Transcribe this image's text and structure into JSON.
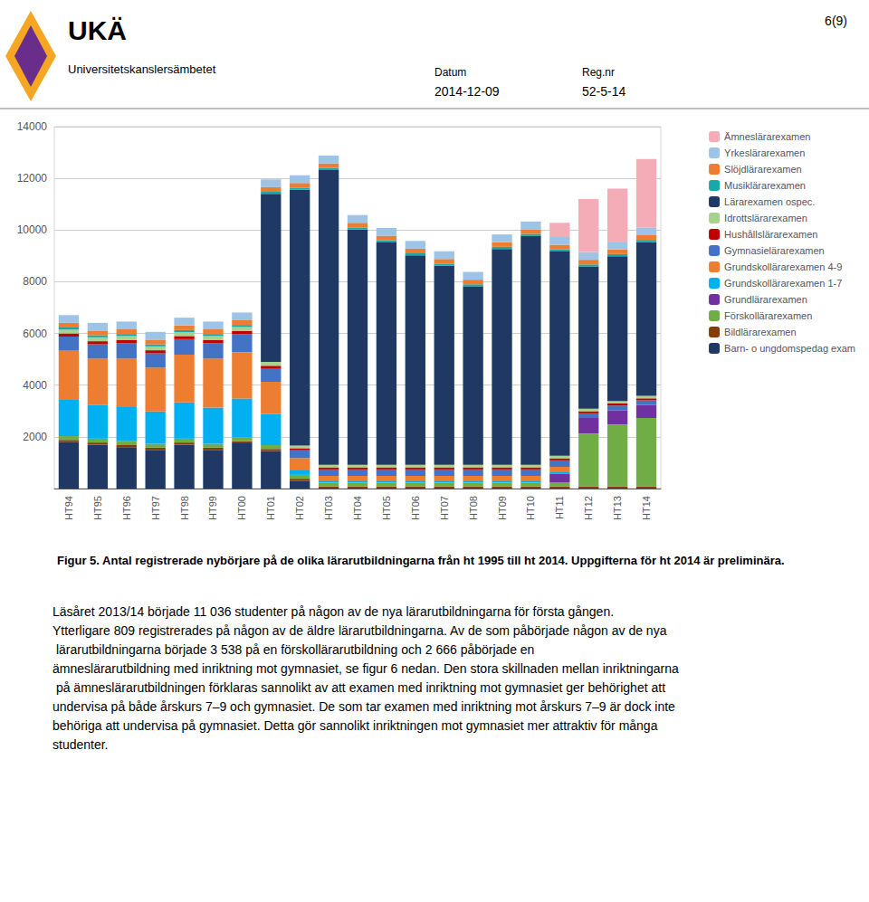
{
  "chart_data": {
    "type": "bar",
    "stacked": true,
    "title": "Figur 5. Antal registrerade nybörjare på de olika lärarutbildningarna från ht 1995 till ht 2014. Uppgifterna för ht 2014 är preliminära.",
    "annotations": [
      "UKÄ",
      "Universitetskanslersämbetet",
      "6(9)",
      "Datum",
      "2014-12-09",
      "Reg.nr",
      "52-5-14",
      "Läsåret 2013/14 började 11 036 studenter på någon av de nya lärarutbildningarna för första gången. Ytterligare 809 registrerades på någon av de äldre lärarutbildningarna. Av de som påbörjade någon av de nya lärarutbildningarna började 3 538 på en förskollärarutbildning och 2 666 påbörjade en ämneslärarutbildning med inriktning mot gymnasiet, se figur 6 nedan. Den stora skillnaden mellan inriktningarna på ämneslärarutbildningen förklaras sannolikt av att examen med inriktning mot gymnasiet ger behörighet att undervisa på både årskurs 7–9 och gymnasiet. De som tar examen med inriktning mot årskurs 7–9 är dock inte behöriga att undervisa på gymnasiet. Detta gör sannolikt inriktningen mot gymnasiet mer attraktiv för många studenter."
    ],
    "categories": [
      "HT94",
      "HT95",
      "HT96",
      "HT97",
      "HT98",
      "HT99",
      "HT00",
      "HT01",
      "HT02",
      "HT03",
      "HT04",
      "HT05",
      "HT06",
      "HT07",
      "HT08",
      "HT09",
      "HT10",
      "HT11",
      "HT12",
      "HT13",
      "HT14"
    ],
    "series": [
      {
        "name": "Barn- o ungdomspedag exam",
        "color": "#1F3864",
        "values": [
          1800,
          1700,
          1600,
          1500,
          1700,
          1500,
          1750,
          1450,
          300,
          0,
          0,
          0,
          0,
          0,
          0,
          0,
          0,
          0,
          0,
          0,
          0
        ]
      },
      {
        "name": "Bildlärarexamen",
        "color": "#843C0C",
        "values": [
          80,
          80,
          80,
          80,
          80,
          80,
          80,
          80,
          80,
          80,
          80,
          80,
          80,
          80,
          80,
          80,
          80,
          80,
          80,
          80,
          80
        ]
      },
      {
        "name": "Förskollärarexamen",
        "color": "#70AD47",
        "values": [
          150,
          150,
          150,
          150,
          150,
          150,
          150,
          150,
          150,
          150,
          150,
          150,
          150,
          150,
          150,
          150,
          150,
          150,
          2050,
          2400,
          2650
        ]
      },
      {
        "name": "Grundlärarexamen",
        "color": "#7030A0",
        "values": [
          0,
          0,
          0,
          0,
          0,
          0,
          0,
          0,
          0,
          0,
          0,
          0,
          0,
          0,
          0,
          0,
          0,
          350,
          600,
          550,
          500
        ]
      },
      {
        "name": "Grundskollärarexamen 1-7",
        "color": "#00B0F0",
        "values": [
          1400,
          1300,
          1350,
          1250,
          1400,
          1400,
          1500,
          1200,
          200,
          80,
          80,
          80,
          80,
          80,
          80,
          80,
          80,
          80,
          0,
          0,
          0
        ]
      },
      {
        "name": "Grundskollärarexamen 4-9",
        "color": "#ED7D31",
        "values": [
          1900,
          1800,
          1850,
          1700,
          1850,
          1900,
          1800,
          1250,
          450,
          180,
          180,
          180,
          180,
          180,
          180,
          180,
          180,
          180,
          0,
          0,
          0
        ]
      },
      {
        "name": "Gymnasielärarexamen",
        "color": "#4472C4",
        "values": [
          550,
          550,
          600,
          550,
          600,
          600,
          700,
          500,
          300,
          250,
          250,
          250,
          250,
          250,
          250,
          250,
          250,
          250,
          180,
          180,
          180
        ]
      },
      {
        "name": "Hushållslärarexamen",
        "color": "#C00000",
        "values": [
          120,
          120,
          120,
          120,
          120,
          120,
          120,
          120,
          80,
          80,
          80,
          80,
          80,
          80,
          80,
          80,
          80,
          80,
          80,
          80,
          80
        ]
      },
      {
        "name": "Idrottslärarexamen",
        "color": "#A9D18E",
        "values": [
          150,
          150,
          150,
          150,
          150,
          150,
          150,
          150,
          100,
          100,
          100,
          100,
          100,
          100,
          100,
          100,
          100,
          100,
          100,
          100,
          100
        ]
      },
      {
        "name": "Lärarexamen ospec.",
        "color": "#1F3864",
        "values": [
          0,
          0,
          0,
          0,
          0,
          0,
          0,
          6500,
          9900,
          11400,
          9100,
          8600,
          8100,
          7700,
          6900,
          8350,
          8850,
          7900,
          5500,
          5600,
          5950
        ]
      },
      {
        "name": "Musiklärarexamen",
        "color": "#17A9A9",
        "values": [
          80,
          80,
          80,
          80,
          80,
          80,
          80,
          80,
          80,
          80,
          80,
          80,
          80,
          80,
          80,
          80,
          80,
          80,
          80,
          80,
          80
        ]
      },
      {
        "name": "Slöjdlärarexamen",
        "color": "#ED7D31",
        "values": [
          180,
          180,
          180,
          180,
          180,
          180,
          180,
          180,
          180,
          180,
          180,
          180,
          180,
          180,
          180,
          180,
          180,
          180,
          180,
          180,
          180
        ]
      },
      {
        "name": "Yrkeslärarexamen",
        "color": "#9DC3E6",
        "values": [
          300,
          300,
          300,
          300,
          300,
          300,
          300,
          300,
          300,
          300,
          300,
          300,
          300,
          300,
          300,
          300,
          300,
          300,
          300,
          300,
          300
        ]
      },
      {
        "name": "Ämneslärarexamen",
        "color": "#F4ACB7",
        "values": [
          0,
          0,
          0,
          0,
          0,
          0,
          0,
          0,
          0,
          0,
          0,
          0,
          0,
          0,
          0,
          0,
          0,
          550,
          2050,
          2050,
          2650
        ]
      }
    ],
    "ylim": [
      0,
      14000
    ],
    "yticks": [
      {
        "value": 0,
        "label": ""
      },
      2000,
      4000,
      6000,
      8000,
      10000,
      12000,
      14000
    ],
    "grid": true,
    "legend": "upper right"
  }
}
